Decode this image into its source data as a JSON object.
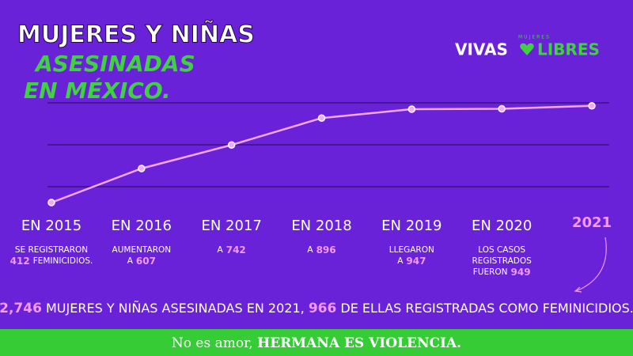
{
  "chart_data": {
    "type": "line",
    "title": [
      "MUJERES Y NIÑAS",
      "ASESINADAS",
      "EN MÉXICO."
    ],
    "logo": {
      "small": "MUJERES",
      "left": "VIVAS",
      "right": "LIBRES"
    },
    "categories": [
      "EN 2015",
      "EN 2016",
      "EN 2017",
      "EN 2018",
      "EN 2019",
      "EN 2020",
      "2021"
    ],
    "values": [
      412,
      607,
      742,
      896,
      947,
      949,
      966
    ],
    "color": "#f7a6f5",
    "ylim": [
      300,
      1000
    ],
    "notes": [
      {
        "above": [
          "SE REGISTRARON"
        ],
        "suffix": "FEMINICIDIOS."
      },
      {
        "above": [
          "AUMENTARON"
        ],
        "prefix": "A"
      },
      {
        "prefix": "A"
      },
      {
        "prefix": "A"
      },
      {
        "above": [
          "LLEGARON"
        ],
        "prefix": "A"
      },
      {
        "above": [
          "LOS CASOS",
          "REGISTRADOS"
        ],
        "prefix": "FUERON"
      },
      null
    ],
    "summary": {
      "total": "2,746",
      "middle": "MUJERES Y NIÑAS ASESINADAS EN 2021,",
      "end": "DE ELLAS REGISTRADAS COMO FEMINICIDIOS."
    },
    "footer": {
      "light": "No es amor,",
      "bold": "HERMANA ES VIOLENCIA."
    }
  }
}
